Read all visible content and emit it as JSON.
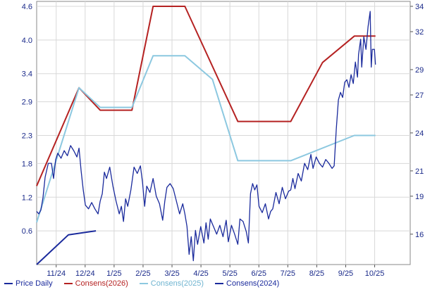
{
  "chart_data": {
    "type": "line",
    "x_ticks": [
      "11/24",
      "12/24",
      "1/25",
      "2/25",
      "3/25",
      "4/25",
      "5/25",
      "6/25",
      "7/25",
      "8/25",
      "9/25",
      "10/25"
    ],
    "y_left": {
      "ticks": [
        "0.6",
        "1.2",
        "1.8",
        "2.3",
        "2.9",
        "3.4",
        "4.0",
        "4.6"
      ],
      "range": [
        0.0,
        4.6
      ]
    },
    "y_right": {
      "ticks": [
        "16",
        "19",
        "21",
        "24",
        "27",
        "29",
        "32",
        "34"
      ],
      "range": [
        13.6,
        34
      ]
    },
    "grid": true,
    "legend_position": "bottom",
    "series": [
      {
        "name": "Price Daily",
        "axis": "right",
        "color": "#1a2a9c",
        "points": [
          [
            0.0,
            17.8
          ],
          [
            0.1,
            17.6
          ],
          [
            0.2,
            17.9
          ],
          [
            0.3,
            18.9
          ],
          [
            0.4,
            20.5
          ],
          [
            0.55,
            21.6
          ],
          [
            0.7,
            21.6
          ],
          [
            0.8,
            20.4
          ],
          [
            0.9,
            21.9
          ],
          [
            1.0,
            22.4
          ],
          [
            1.15,
            22.0
          ],
          [
            1.3,
            22.6
          ],
          [
            1.45,
            22.2
          ],
          [
            1.6,
            23.0
          ],
          [
            1.75,
            22.6
          ],
          [
            1.9,
            22.1
          ],
          [
            2.0,
            22.8
          ],
          [
            2.1,
            21.0
          ],
          [
            2.2,
            19.5
          ],
          [
            2.3,
            18.3
          ],
          [
            2.45,
            18.0
          ],
          [
            2.6,
            18.5
          ],
          [
            2.75,
            18.0
          ],
          [
            2.9,
            17.6
          ],
          [
            3.0,
            18.6
          ],
          [
            3.1,
            19.2
          ],
          [
            3.2,
            20.9
          ],
          [
            3.3,
            20.4
          ],
          [
            3.45,
            21.3
          ],
          [
            3.6,
            19.8
          ],
          [
            3.75,
            18.6
          ],
          [
            3.9,
            17.6
          ],
          [
            4.0,
            18.2
          ],
          [
            4.1,
            17.0
          ],
          [
            4.2,
            18.8
          ],
          [
            4.3,
            18.2
          ],
          [
            4.45,
            19.5
          ],
          [
            4.6,
            21.3
          ],
          [
            4.75,
            20.8
          ],
          [
            4.9,
            21.4
          ],
          [
            5.0,
            20.1
          ],
          [
            5.1,
            18.2
          ],
          [
            5.2,
            19.8
          ],
          [
            5.35,
            19.3
          ],
          [
            5.5,
            20.4
          ],
          [
            5.65,
            19.0
          ],
          [
            5.8,
            18.4
          ],
          [
            5.95,
            17.1
          ],
          [
            6.05,
            18.6
          ],
          [
            6.15,
            19.7
          ],
          [
            6.3,
            20.0
          ],
          [
            6.45,
            19.6
          ],
          [
            6.6,
            18.6
          ],
          [
            6.75,
            17.6
          ],
          [
            6.9,
            18.4
          ],
          [
            7.0,
            17.6
          ],
          [
            7.1,
            16.6
          ],
          [
            7.2,
            14.4
          ],
          [
            7.3,
            15.8
          ],
          [
            7.4,
            13.9
          ],
          [
            7.5,
            16.3
          ],
          [
            7.6,
            15.2
          ],
          [
            7.75,
            16.6
          ],
          [
            7.9,
            15.3
          ],
          [
            8.0,
            16.9
          ],
          [
            8.1,
            15.6
          ],
          [
            8.2,
            17.2
          ],
          [
            8.35,
            16.6
          ],
          [
            8.5,
            16.0
          ],
          [
            8.65,
            16.7
          ],
          [
            8.8,
            15.8
          ],
          [
            8.95,
            17.1
          ],
          [
            9.05,
            15.4
          ],
          [
            9.2,
            16.7
          ],
          [
            9.35,
            16.0
          ],
          [
            9.5,
            15.2
          ],
          [
            9.6,
            17.2
          ],
          [
            9.75,
            17.0
          ],
          [
            9.9,
            16.2
          ],
          [
            10.0,
            15.3
          ],
          [
            10.1,
            19.2
          ],
          [
            10.2,
            20.0
          ],
          [
            10.3,
            19.5
          ],
          [
            10.4,
            19.9
          ],
          [
            10.5,
            18.2
          ],
          [
            10.65,
            17.7
          ],
          [
            10.8,
            18.4
          ],
          [
            10.95,
            17.2
          ],
          [
            11.05,
            17.8
          ],
          [
            11.15,
            18.0
          ],
          [
            11.3,
            19.3
          ],
          [
            11.45,
            18.4
          ],
          [
            11.6,
            19.7
          ],
          [
            11.75,
            18.8
          ],
          [
            11.9,
            19.4
          ],
          [
            12.0,
            19.5
          ],
          [
            12.1,
            20.4
          ],
          [
            12.2,
            19.6
          ],
          [
            12.35,
            20.8
          ],
          [
            12.5,
            20.2
          ],
          [
            12.65,
            21.6
          ],
          [
            12.8,
            21.1
          ],
          [
            12.95,
            22.3
          ],
          [
            13.05,
            21.2
          ],
          [
            13.2,
            22.1
          ],
          [
            13.35,
            21.6
          ],
          [
            13.5,
            21.3
          ],
          [
            13.65,
            21.9
          ],
          [
            13.8,
            21.6
          ],
          [
            13.95,
            21.2
          ],
          [
            14.05,
            21.4
          ],
          [
            14.15,
            24.3
          ],
          [
            14.25,
            26.6
          ],
          [
            14.35,
            27.2
          ],
          [
            14.45,
            26.8
          ],
          [
            14.55,
            28.0
          ],
          [
            14.65,
            28.2
          ],
          [
            14.75,
            27.6
          ],
          [
            14.85,
            28.6
          ],
          [
            14.95,
            27.9
          ],
          [
            15.05,
            29.6
          ],
          [
            15.15,
            28.4
          ],
          [
            15.2,
            30.2
          ],
          [
            15.3,
            31.4
          ],
          [
            15.35,
            29.2
          ],
          [
            15.45,
            31.6
          ],
          [
            15.55,
            30.6
          ],
          [
            15.65,
            32.4
          ],
          [
            15.75,
            33.6
          ],
          [
            15.8,
            29.2
          ],
          [
            15.85,
            30.6
          ],
          [
            15.95,
            30.6
          ],
          [
            16.0,
            29.4
          ]
        ]
      },
      {
        "name": "Consens(2026)",
        "axis": "left",
        "color": "#b52222",
        "points": [
          [
            0.0,
            1.4
          ],
          [
            2.0,
            3.15
          ],
          [
            3.0,
            2.75
          ],
          [
            4.5,
            2.75
          ],
          [
            5.5,
            4.6
          ],
          [
            7.0,
            4.6
          ],
          [
            9.5,
            2.55
          ],
          [
            12.0,
            2.55
          ],
          [
            13.5,
            3.6
          ],
          [
            15.0,
            4.07
          ],
          [
            16.0,
            4.07
          ]
        ]
      },
      {
        "name": "Consens(2025)",
        "axis": "left",
        "color": "#8cc8e0",
        "points": [
          [
            0.0,
            0.75
          ],
          [
            2.0,
            3.15
          ],
          [
            3.0,
            2.8
          ],
          [
            4.5,
            2.8
          ],
          [
            5.5,
            3.72
          ],
          [
            7.0,
            3.72
          ],
          [
            8.3,
            3.3
          ],
          [
            9.5,
            1.85
          ],
          [
            12.0,
            1.85
          ],
          [
            15.0,
            2.3
          ],
          [
            16.0,
            2.3
          ]
        ]
      },
      {
        "name": "Consens(2024)",
        "axis": "left",
        "color": "#1a2a9c",
        "points": [
          [
            0.0,
            0.0
          ],
          [
            1.5,
            0.53
          ],
          [
            2.8,
            0.6
          ]
        ]
      }
    ]
  }
}
